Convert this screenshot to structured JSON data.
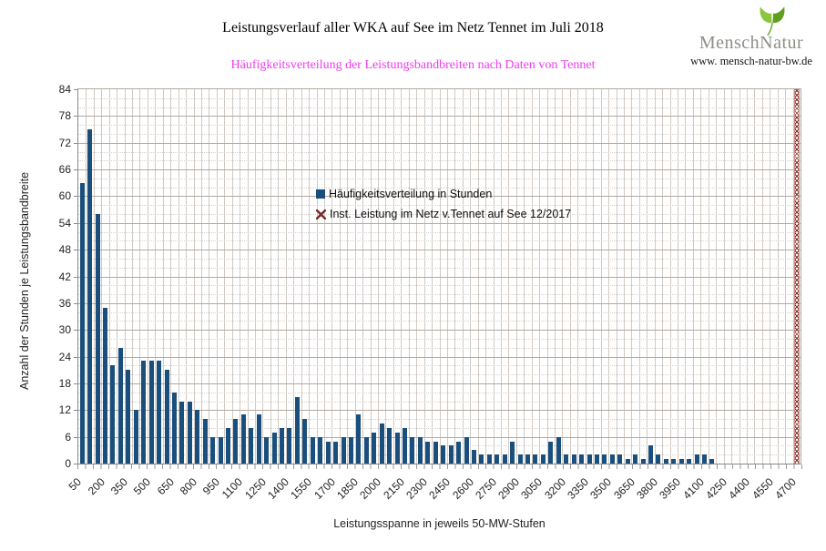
{
  "header": {
    "title": "Leistungsverlauf aller WKA auf See im Netz Tennet im Juli 2018",
    "subtitle": "Häufigkeitsverteilung der Leistungsbandbreiten nach Daten von Tennet",
    "logo": {
      "brand": "MenschNatur",
      "url": "www. mensch-natur-bw.de",
      "leaf_icon": "ginkgo-leaf"
    }
  },
  "chart_data": {
    "type": "bar",
    "title": "Leistungsverlauf aller WKA auf See im Netz Tennet im Juli 2018",
    "subtitle": "Häufigkeitsverteilung der Leistungsbandbreiten nach Daten von Tennet",
    "xlabel": "Leistungsspanne in jeweils 50-MW-Stufen",
    "ylabel": "Anzahl der Stunden je Leistungsbandbreite",
    "ylim": [
      0,
      84
    ],
    "ytick_step_major": 6,
    "ytick_step_minor": 2,
    "grid": "major-and-minor-horizontal-plus-vertical",
    "legend_position": "inside-upper-middle",
    "categories_mw_start": 50,
    "categories_mw_step": 50,
    "categories_count": 94,
    "xtick_labels": [
      "50",
      "200",
      "350",
      "500",
      "650",
      "800",
      "950",
      "1100",
      "1250",
      "1400",
      "1550",
      "1700",
      "1850",
      "2000",
      "2150",
      "2300",
      "2450",
      "2600",
      "2750",
      "2900",
      "3050",
      "3200",
      "3350",
      "3500",
      "3650",
      "3800",
      "3950",
      "4100",
      "4250",
      "4400",
      "4550",
      "4700"
    ],
    "ytick_labels": [
      "0",
      "6",
      "12",
      "18",
      "24",
      "30",
      "36",
      "42",
      "48",
      "54",
      "60",
      "66",
      "72",
      "78",
      "84"
    ],
    "series": [
      {
        "name": "Häufigkeitsverteilung in Stunden",
        "type": "bar",
        "color": "#1a4f7d",
        "values": [
          63,
          75,
          56,
          35,
          22,
          26,
          21,
          12,
          23,
          23,
          23,
          21,
          16,
          14,
          14,
          12,
          10,
          6,
          6,
          8,
          10,
          11,
          8,
          11,
          6,
          7,
          8,
          8,
          15,
          10,
          6,
          6,
          5,
          5,
          6,
          6,
          11,
          6,
          7,
          9,
          8,
          7,
          8,
          6,
          6,
          5,
          5,
          4,
          4,
          5,
          6,
          3,
          2,
          2,
          2,
          2,
          5,
          2,
          2,
          2,
          2,
          5,
          6,
          2,
          2,
          2,
          2,
          2,
          2,
          2,
          2,
          1,
          2,
          1,
          4,
          2,
          1,
          1,
          1,
          1,
          2,
          2,
          1,
          0,
          0,
          0,
          0,
          0,
          0,
          0,
          0,
          0,
          0,
          0
        ]
      },
      {
        "name": "Inst. Leistung im Netz v.Tennet auf See 12/2017",
        "type": "full-height-hatched-marker",
        "color": "#7a2d26",
        "x_mw": 4700,
        "value": 84
      }
    ]
  },
  "colors": {
    "bar": "#1a4f7d",
    "hatch": "#7a2d26",
    "subtitle": "#ee3bee",
    "grid_major": "#b4aaa2",
    "grid_minor": "#d8d1cb",
    "grid_vertical": "#d2c9c2",
    "leaf_light": "#8bc53f",
    "leaf_dark": "#5f9e1f",
    "brand_text": "#8e8e89"
  }
}
